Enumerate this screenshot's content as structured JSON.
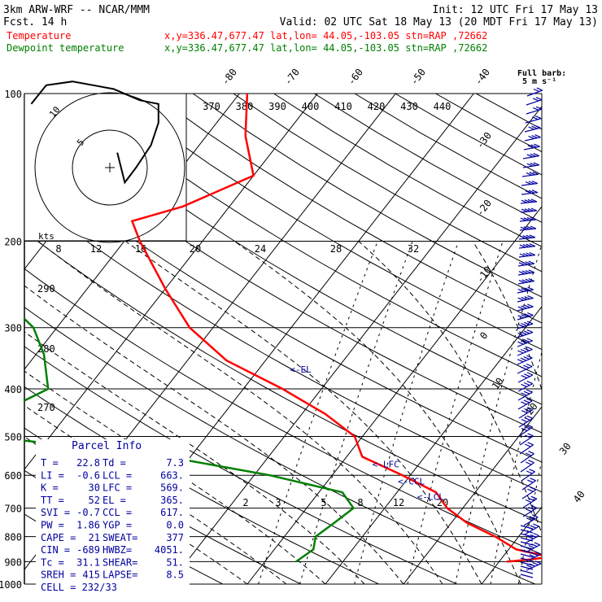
{
  "header": {
    "model": "3km ARW-WRF -- NCAR/MMM",
    "init": "Init: 12 UTC Fri 17 May 13",
    "fcst": "Fcst.   14 h",
    "valid": "Valid: 02 UTC Sat 18 May 13 (20 MDT Fri 17 May 13)",
    "temp_label": "Temperature",
    "temp_info": "x,y=336.47,677.47   lat,lon= 44.05,-103.05  stn=RAP ,72662",
    "dew_label": "Dewpoint temperature",
    "dew_info": "x,y=336.47,677.47   lat,lon= 44.05,-103.05  stn=RAP ,72662"
  },
  "barb_legend": {
    "line1": "Full barb:",
    "line2": "5 m s⁻¹"
  },
  "hodograph": {
    "units": "kts",
    "ring_labels": [
      "5",
      "10"
    ]
  },
  "parcel_info": {
    "title": "Parcel Info",
    "rows": [
      [
        "T   =",
        "22.8",
        "Td =",
        "7.3"
      ],
      [
        "LI  =",
        "-0.6",
        "LCL =",
        "663."
      ],
      [
        "K   =",
        "30",
        "LFC =",
        "569."
      ],
      [
        "TT  =",
        "52",
        "EL  =",
        "365."
      ],
      [
        "SVI =",
        "-0.7",
        "CCL =",
        "617."
      ],
      [
        "PW  =",
        "1.86",
        "YGP =",
        "0.0"
      ],
      [
        "CAPE =",
        "21",
        "SWEAT=",
        "377"
      ],
      [
        "CIN =",
        "-689",
        "HWBZ=",
        "4051."
      ],
      [
        "Tc  =",
        "31.1",
        "SHEAR=",
        "51."
      ],
      [
        "SREH =",
        "415",
        "LAPSE=",
        "8.5"
      ],
      [
        "CELL = 232/33",
        "",
        "",
        ""
      ]
    ]
  },
  "level_labels": [
    {
      "label": "<-EL",
      "p": 365,
      "t": -26
    },
    {
      "label": "<-LFC",
      "p": 569,
      "t": -6
    },
    {
      "label": "<-CCL",
      "p": 617,
      "t": -1
    },
    {
      "label": "<-LCL",
      "p": 663,
      "t": 3
    }
  ],
  "colors": {
    "temperature": "#ff0000",
    "dewpoint": "#008000",
    "header_red": "#ff0000",
    "header_green": "#008000",
    "barbs": "#0000a0",
    "labels_blue": "#0000a0"
  },
  "chart_data": {
    "type": "line",
    "title": "Skew-T log-P sounding",
    "xlabel": "",
    "ylabel": "",
    "ylim": [
      1000,
      100
    ],
    "y_ticks": [
      100,
      200,
      300,
      400,
      500,
      600,
      700,
      800,
      900,
      1000
    ],
    "isotherm_labels": [
      -80,
      -70,
      -60,
      -50,
      -40,
      -30,
      -20,
      -10,
      0,
      10,
      20,
      30,
      40
    ],
    "theta_labels": [
      370,
      380,
      390,
      400,
      410,
      420,
      430,
      440
    ],
    "mixing_ratio_labels_top": [
      8,
      12,
      16,
      20,
      24,
      28,
      32
    ],
    "mixing_ratio_labels_low": [
      2,
      3,
      5,
      8,
      12,
      20
    ],
    "theta_labels_left": [
      290,
      280,
      270
    ],
    "series": [
      {
        "name": "Temperature",
        "points": [
          [
            100,
            -59
          ],
          [
            122,
            -55
          ],
          [
            147,
            -50
          ],
          [
            170,
            -56
          ],
          [
            182,
            -61
          ],
          [
            200,
            -58
          ],
          [
            250,
            -50
          ],
          [
            300,
            -43
          ],
          [
            350,
            -35
          ],
          [
            400,
            -25
          ],
          [
            450,
            -17
          ],
          [
            500,
            -11
          ],
          [
            550,
            -8
          ],
          [
            600,
            -1
          ],
          [
            650,
            5
          ],
          [
            700,
            8
          ],
          [
            750,
            12
          ],
          [
            800,
            17
          ],
          [
            850,
            21
          ],
          [
            880,
            26
          ],
          [
            890,
            24
          ],
          [
            900,
            21
          ]
        ]
      },
      {
        "name": "Dewpoint temperature",
        "points": [
          [
            100,
            -90
          ],
          [
            140,
            -86
          ],
          [
            175,
            -82
          ],
          [
            200,
            -79
          ],
          [
            250,
            -72
          ],
          [
            300,
            -63
          ],
          [
            340,
            -59
          ],
          [
            400,
            -55
          ],
          [
            450,
            -59
          ],
          [
            470,
            -70
          ],
          [
            500,
            -58
          ],
          [
            550,
            -33
          ],
          [
            600,
            -18
          ],
          [
            650,
            -7
          ],
          [
            700,
            -4
          ],
          [
            750,
            -5
          ],
          [
            800,
            -6
          ],
          [
            850,
            -5
          ],
          [
            900,
            -6
          ]
        ]
      }
    ],
    "hodograph_points": [
      [
        -21,
        17
      ],
      [
        -17,
        22
      ],
      [
        -10,
        23
      ],
      [
        1,
        21
      ],
      [
        8,
        18
      ],
      [
        13,
        17
      ],
      [
        13,
        12
      ],
      [
        11,
        6
      ],
      [
        7,
        0
      ],
      [
        4,
        -4
      ],
      [
        2,
        4
      ]
    ]
  }
}
